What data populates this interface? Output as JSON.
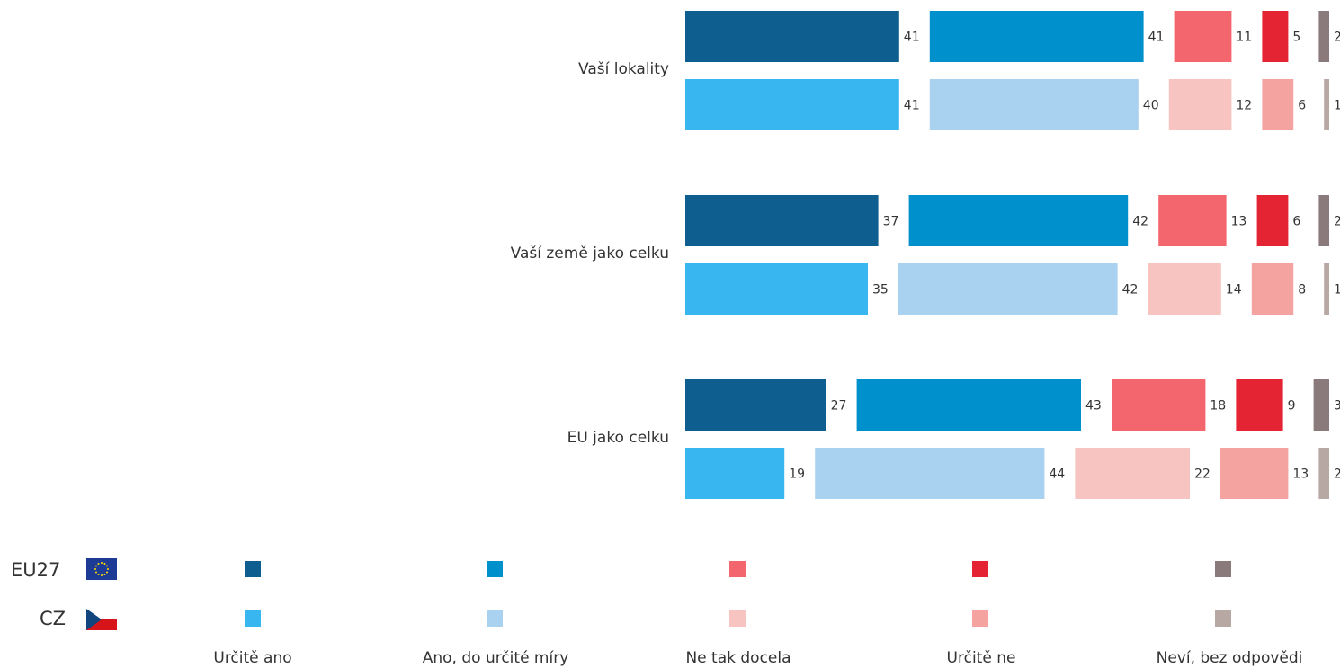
{
  "chart_data": {
    "type": "bar",
    "orientation": "horizontal-stacked",
    "categories": [
      "Vaší lokality",
      "Vaší země jako celku",
      "EU jako celku"
    ],
    "answers": [
      "Určitě ano",
      "Ano, do určité míry",
      "Ne tak docela",
      "Určitě ne",
      "Neví, bez odpovědi"
    ],
    "series": [
      {
        "name": "EU27",
        "values": [
          [
            41,
            41,
            11,
            5,
            2
          ],
          [
            37,
            42,
            13,
            6,
            2
          ],
          [
            27,
            43,
            18,
            9,
            3
          ]
        ],
        "colors": [
          "#0e5e8f",
          "#0090cc",
          "#f4666e",
          "#e42333",
          "#8a7a7c"
        ]
      },
      {
        "name": "CZ",
        "values": [
          [
            41,
            40,
            12,
            6,
            1
          ],
          [
            35,
            42,
            14,
            8,
            1
          ],
          [
            19,
            44,
            22,
            13,
            2
          ]
        ],
        "colors": [
          "#37b6ef",
          "#a9d1f0",
          "#f7c4c1",
          "#f4a3a0",
          "#b8a8a3"
        ]
      }
    ]
  },
  "legend": {
    "rows": [
      {
        "label": "EU27",
        "flag": "eu-flag-icon"
      },
      {
        "label": "CZ",
        "flag": "cz-flag-icon"
      }
    ]
  }
}
